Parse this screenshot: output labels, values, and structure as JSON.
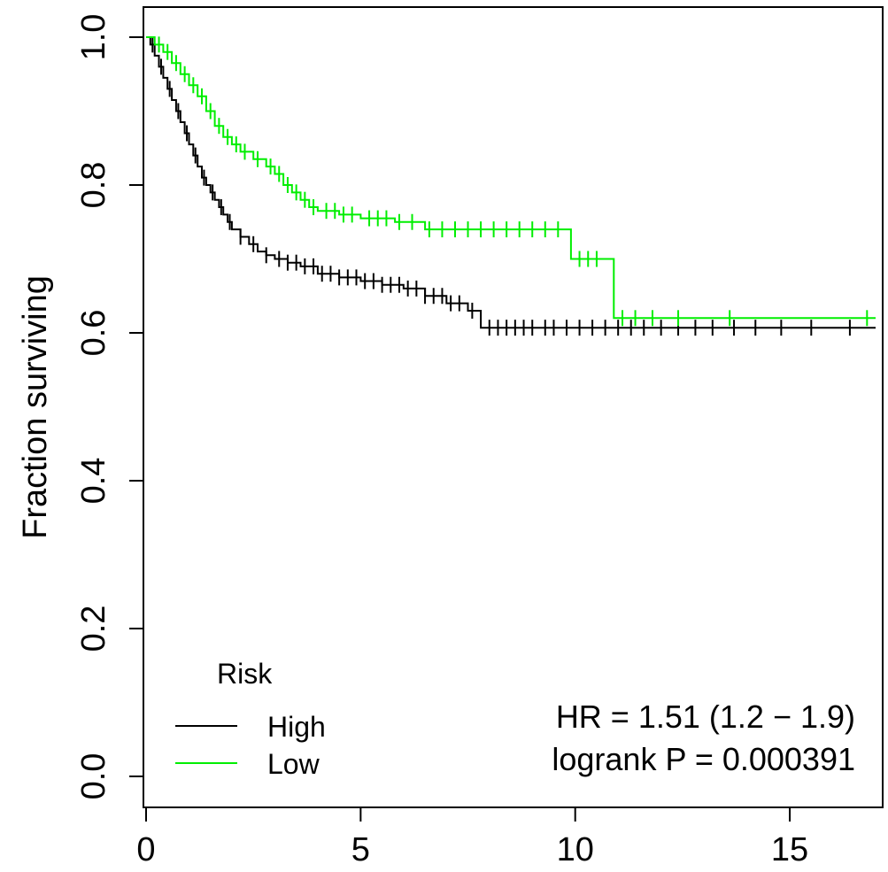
{
  "chart_data": {
    "type": "line",
    "subtype": "kaplan-meier",
    "title": "",
    "xlabel": "",
    "ylabel": "Fraction surviving",
    "xlim": [
      0,
      17
    ],
    "ylim": [
      0,
      1
    ],
    "x_ticks": [
      {
        "value": 0,
        "label": "0"
      },
      {
        "value": 5,
        "label": "5"
      },
      {
        "value": 10,
        "label": "10"
      },
      {
        "value": 15,
        "label": "15"
      }
    ],
    "y_ticks": [
      {
        "value": 0.0,
        "label": "0.0"
      },
      {
        "value": 0.2,
        "label": "0.2"
      },
      {
        "value": 0.4,
        "label": "0.4"
      },
      {
        "value": 0.6,
        "label": "0.6"
      },
      {
        "value": 0.8,
        "label": "0.8"
      },
      {
        "value": 1.0,
        "label": "1.0"
      }
    ],
    "grid": false,
    "legend": {
      "title": "Risk",
      "position": "bottom-left",
      "entries": [
        {
          "label": "High",
          "color": "#000000"
        },
        {
          "label": "Low",
          "color": "#00ee00"
        }
      ]
    },
    "annotations": [
      "HR = 1.51 (1.2 − 1.9)",
      "logrank P = 0.000391"
    ],
    "series": [
      {
        "name": "High",
        "color": "#000000",
        "steps": [
          [
            0,
            1.0
          ],
          [
            0.1,
            0.99
          ],
          [
            0.2,
            0.975
          ],
          [
            0.3,
            0.96
          ],
          [
            0.4,
            0.945
          ],
          [
            0.5,
            0.93
          ],
          [
            0.6,
            0.915
          ],
          [
            0.7,
            0.9
          ],
          [
            0.8,
            0.885
          ],
          [
            0.9,
            0.87
          ],
          [
            1.0,
            0.855
          ],
          [
            1.1,
            0.84
          ],
          [
            1.2,
            0.825
          ],
          [
            1.3,
            0.81
          ],
          [
            1.4,
            0.8
          ],
          [
            1.5,
            0.79
          ],
          [
            1.6,
            0.78
          ],
          [
            1.7,
            0.77
          ],
          [
            1.8,
            0.76
          ],
          [
            1.9,
            0.75
          ],
          [
            2.0,
            0.74
          ],
          [
            2.2,
            0.73
          ],
          [
            2.4,
            0.72
          ],
          [
            2.6,
            0.71
          ],
          [
            2.8,
            0.705
          ],
          [
            3.0,
            0.7
          ],
          [
            3.3,
            0.695
          ],
          [
            3.6,
            0.69
          ],
          [
            4.0,
            0.68
          ],
          [
            4.5,
            0.675
          ],
          [
            5.0,
            0.67
          ],
          [
            5.5,
            0.665
          ],
          [
            6.0,
            0.66
          ],
          [
            6.5,
            0.65
          ],
          [
            7.0,
            0.64
          ],
          [
            7.5,
            0.63
          ],
          [
            7.8,
            0.607
          ],
          [
            17.0,
            0.607
          ]
        ],
        "censor_times": [
          0.15,
          0.35,
          0.55,
          0.75,
          0.95,
          1.15,
          1.35,
          1.55,
          1.75,
          1.95,
          2.2,
          2.5,
          2.8,
          3.1,
          3.3,
          3.5,
          3.7,
          3.9,
          4.1,
          4.3,
          4.5,
          4.7,
          4.9,
          5.1,
          5.3,
          5.5,
          5.7,
          5.9,
          6.1,
          6.3,
          6.5,
          6.7,
          6.9,
          7.1,
          7.3,
          7.6,
          8.0,
          8.2,
          8.4,
          8.6,
          8.8,
          9.0,
          9.3,
          9.5,
          9.8,
          10.1,
          10.4,
          10.7,
          11.0,
          11.3,
          11.6,
          12.0,
          12.4,
          12.8,
          13.2,
          13.7,
          14.2,
          14.8,
          15.5,
          16.4
        ]
      },
      {
        "name": "Low",
        "color": "#00ee00",
        "steps": [
          [
            0,
            1.0
          ],
          [
            0.2,
            0.99
          ],
          [
            0.4,
            0.98
          ],
          [
            0.6,
            0.965
          ],
          [
            0.8,
            0.95
          ],
          [
            1.0,
            0.935
          ],
          [
            1.2,
            0.92
          ],
          [
            1.4,
            0.9
          ],
          [
            1.6,
            0.88
          ],
          [
            1.8,
            0.865
          ],
          [
            2.0,
            0.855
          ],
          [
            2.2,
            0.845
          ],
          [
            2.5,
            0.835
          ],
          [
            2.8,
            0.825
          ],
          [
            3.0,
            0.815
          ],
          [
            3.2,
            0.8
          ],
          [
            3.4,
            0.79
          ],
          [
            3.6,
            0.78
          ],
          [
            3.8,
            0.77
          ],
          [
            4.0,
            0.765
          ],
          [
            4.5,
            0.76
          ],
          [
            5.0,
            0.755
          ],
          [
            5.8,
            0.75
          ],
          [
            6.5,
            0.74
          ],
          [
            9.9,
            0.7
          ],
          [
            10.9,
            0.62
          ],
          [
            17.0,
            0.62
          ]
        ],
        "censor_times": [
          0.3,
          0.5,
          0.7,
          0.9,
          1.1,
          1.3,
          1.5,
          1.7,
          1.9,
          2.1,
          2.3,
          2.6,
          2.9,
          3.1,
          3.3,
          3.5,
          3.7,
          3.9,
          4.2,
          4.4,
          4.6,
          4.8,
          5.2,
          5.4,
          5.6,
          5.9,
          6.2,
          6.6,
          6.9,
          7.2,
          7.5,
          7.8,
          8.1,
          8.4,
          8.7,
          9.0,
          9.3,
          9.6,
          10.1,
          10.3,
          10.5,
          11.1,
          11.4,
          11.8,
          12.4,
          13.6,
          16.8
        ]
      }
    ]
  }
}
